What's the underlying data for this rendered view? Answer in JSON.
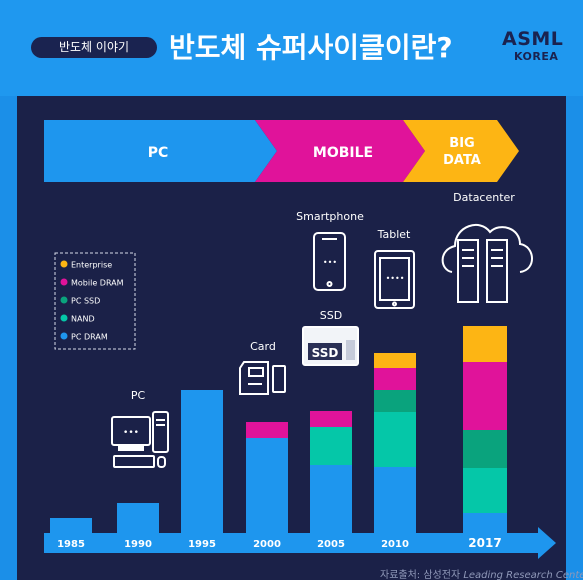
{
  "header": {
    "tag": "반도체 이야기",
    "title": "반도체 슈퍼사이클이란?",
    "logo_main": "ASML",
    "logo_sub": "KOREA"
  },
  "eras": [
    {
      "label": "PC",
      "color": "#1e96ee"
    },
    {
      "label": "MOBILE",
      "color": "#e0139a"
    },
    {
      "label": "BIG DATA",
      "color": "#fdb514"
    }
  ],
  "device_labels": {
    "pc": "PC",
    "card": "Card",
    "ssd": "SSD",
    "smartphone": "Smartphone",
    "tablet": "Tablet",
    "datacenter": "Datacenter",
    "ssd_text": "SSD"
  },
  "chart_data": {
    "type": "bar",
    "stacked": true,
    "categories": [
      "1985",
      "1990",
      "1995",
      "2000",
      "2005",
      "2010",
      "2017"
    ],
    "series": [
      {
        "name": "PC DRAM",
        "color": "#1e96ee",
        "values": [
          15,
          30,
          143,
          95,
          68,
          66,
          20
        ]
      },
      {
        "name": "NAND",
        "color": "#05c7a8",
        "values": [
          0,
          0,
          0,
          0,
          38,
          55,
          45
        ]
      },
      {
        "name": "PC SSD",
        "color": "#0aa37d",
        "values": [
          0,
          0,
          0,
          0,
          0,
          22,
          38
        ]
      },
      {
        "name": "Mobile DRAM",
        "color": "#e0139a",
        "values": [
          0,
          0,
          0,
          16,
          16,
          22,
          68
        ]
      },
      {
        "name": "Enterprise",
        "color": "#fdb514",
        "values": [
          0,
          0,
          0,
          0,
          0,
          15,
          36
        ]
      }
    ],
    "legend_order": [
      "Enterprise",
      "Mobile DRAM",
      "PC SSD",
      "NAND",
      "PC DRAM"
    ],
    "legend_position": "left",
    "xlabel": "",
    "ylabel": "",
    "grid": false
  },
  "source": {
    "prefix": "자료출처: 삼성전자 ",
    "italic": "Leading Research Center"
  }
}
